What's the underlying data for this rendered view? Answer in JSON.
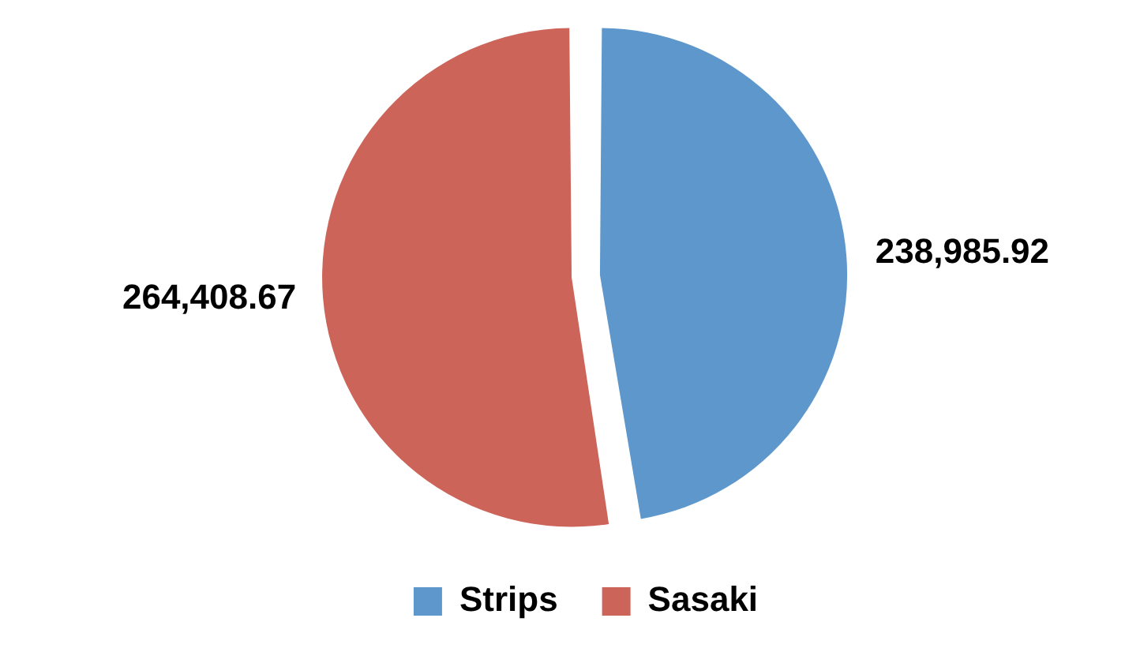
{
  "chart_data": {
    "type": "pie",
    "categories": [
      "Strips",
      "Sasaki"
    ],
    "values": [
      238985.92,
      264408.67
    ],
    "value_labels": [
      "238,985.92",
      "264,408.67"
    ],
    "colors": [
      "#5e97cb",
      "#cc6459"
    ],
    "legend": "bottom"
  }
}
